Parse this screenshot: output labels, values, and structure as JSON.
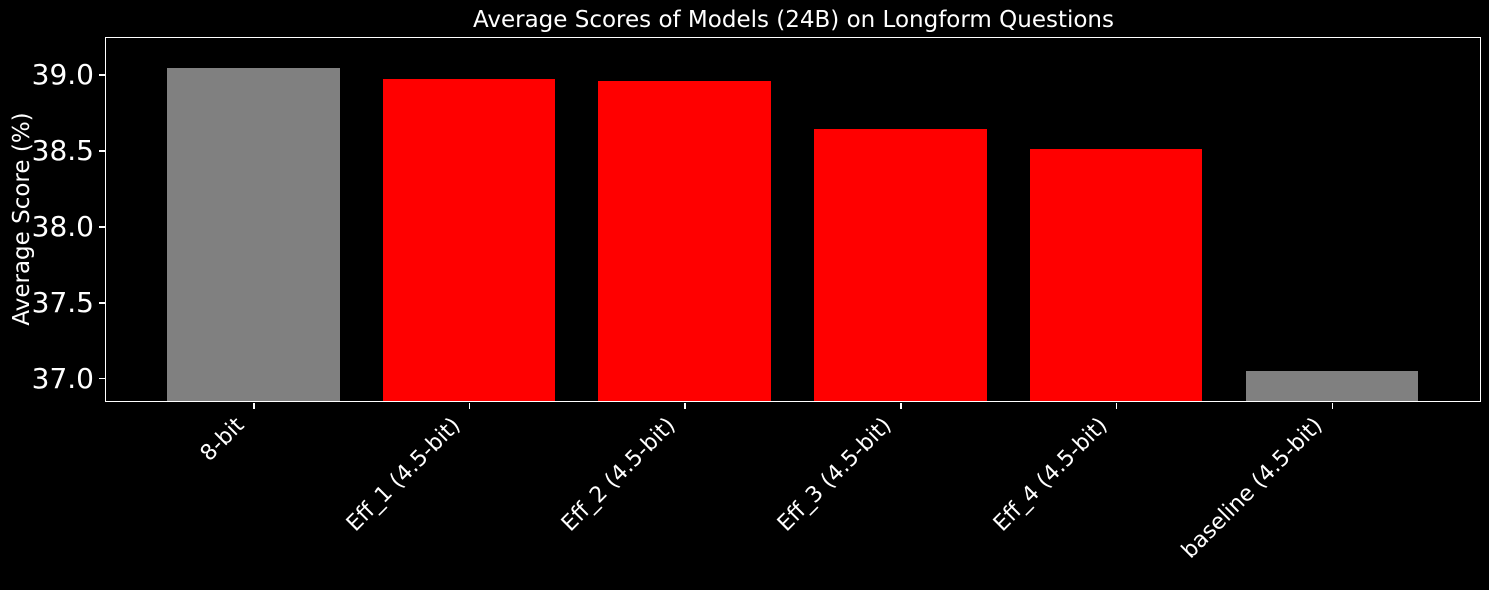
{
  "figure": {
    "background_color": "#000000",
    "text_color": "#ffffff",
    "axis_color": "#ffffff"
  },
  "chart_data": {
    "type": "bar",
    "title": "Average Scores of Models (24B) on Longform Questions",
    "xlabel": "",
    "ylabel": "Average Score (%)",
    "categories": [
      "8-bit",
      "Eff_1 (4.5-bit)",
      "Eff_2 (4.5-bit)",
      "Eff_3 (4.5-bit)",
      "Eff_4 (4.5-bit)",
      "baseline (4.5-bit)"
    ],
    "values": [
      39.04,
      38.97,
      38.96,
      38.64,
      38.51,
      37.05
    ],
    "bar_colors": [
      "#808080",
      "#ff0000",
      "#ff0000",
      "#ff0000",
      "#ff0000",
      "#808080"
    ],
    "highlight_color": "#ff0000",
    "neutral_color": "#808080",
    "yticks": [
      37.0,
      37.5,
      38.0,
      38.5,
      39.0
    ],
    "ytick_labels": [
      "37.0",
      "37.5",
      "38.0",
      "38.5",
      "39.0"
    ],
    "ylim": [
      36.85,
      39.24
    ],
    "grid": false,
    "legend_position": "none",
    "xtick_rotation_deg": 45
  }
}
